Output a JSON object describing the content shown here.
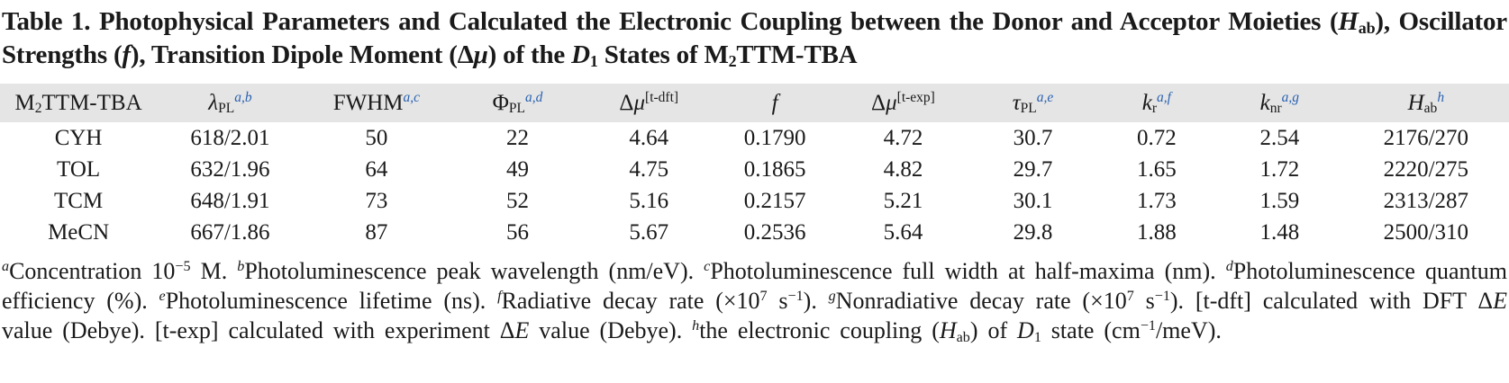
{
  "colors": {
    "accent_blue": "#2a62b0",
    "header_band": "#e5e5e6",
    "text": "#1a1a1a"
  },
  "title": {
    "segments": [
      {
        "t": "Table 1. Photophysical Parameters and Calculated the Electronic Coupling between the Donor and Acceptor Moieties ("
      },
      {
        "s": "i",
        "t": "H"
      },
      {
        "s": "sub",
        "t": "ab"
      },
      {
        "t": "), Oscillator Strengths ("
      },
      {
        "s": "i",
        "t": "f"
      },
      {
        "t": "), Transition Dipole Moment (Δ"
      },
      {
        "s": "i",
        "t": "μ"
      },
      {
        "t": ") of the "
      },
      {
        "s": "i",
        "t": "D"
      },
      {
        "s": "sub",
        "t": "1"
      },
      {
        "t": " States of M"
      },
      {
        "s": "sub",
        "t": "2"
      },
      {
        "t": "TTM-TBA"
      }
    ]
  },
  "table": {
    "header": [
      {
        "name": "compound",
        "segments": [
          {
            "t": "M"
          },
          {
            "s": "sub",
            "t": "2"
          },
          {
            "t": "TTM-TBA"
          }
        ]
      },
      {
        "name": "lambda-pl",
        "segments": [
          {
            "s": "i",
            "t": "λ"
          },
          {
            "s": "sub",
            "t": "PL"
          },
          {
            "s": "supb",
            "t": "a,b"
          }
        ]
      },
      {
        "name": "fwhm",
        "segments": [
          {
            "t": "FWHM"
          },
          {
            "s": "supb",
            "t": "a,c"
          }
        ]
      },
      {
        "name": "phi-pl",
        "segments": [
          {
            "t": "Φ"
          },
          {
            "s": "sub",
            "t": "PL"
          },
          {
            "s": "supb",
            "t": "a,d"
          }
        ]
      },
      {
        "name": "delta-mu-tdft",
        "segments": [
          {
            "t": "Δ"
          },
          {
            "s": "i",
            "t": "μ"
          },
          {
            "s": "sup",
            "t": "[t-dft]"
          }
        ]
      },
      {
        "name": "f",
        "segments": [
          {
            "s": "i",
            "t": "f"
          }
        ]
      },
      {
        "name": "delta-mu-texp",
        "segments": [
          {
            "t": "Δ"
          },
          {
            "s": "i",
            "t": "μ"
          },
          {
            "s": "sup",
            "t": "[t-exp]"
          }
        ]
      },
      {
        "name": "tau-pl",
        "segments": [
          {
            "s": "i",
            "t": "τ"
          },
          {
            "s": "sub",
            "t": "PL"
          },
          {
            "s": "supb",
            "t": "a,e"
          }
        ]
      },
      {
        "name": "k-r",
        "segments": [
          {
            "s": "i",
            "t": "k"
          },
          {
            "s": "sub",
            "t": "r"
          },
          {
            "s": "supb",
            "t": "a,f"
          }
        ]
      },
      {
        "name": "k-nr",
        "segments": [
          {
            "s": "i",
            "t": "k"
          },
          {
            "s": "sub",
            "t": "nr"
          },
          {
            "s": "supb",
            "t": "a,g"
          }
        ]
      },
      {
        "name": "h-ab",
        "segments": [
          {
            "s": "i",
            "t": "H"
          },
          {
            "s": "sub",
            "t": "ab"
          },
          {
            "s": "supb",
            "t": "h"
          }
        ]
      }
    ],
    "rows": [
      {
        "cells": [
          "CYH",
          "618/2.01",
          "50",
          "22",
          "4.64",
          "0.1790",
          "4.72",
          "30.7",
          "0.72",
          "2.54",
          "2176/270"
        ]
      },
      {
        "cells": [
          "TOL",
          "632/1.96",
          "64",
          "49",
          "4.75",
          "0.1865",
          "4.82",
          "29.7",
          "1.65",
          "1.72",
          "2220/275"
        ]
      },
      {
        "cells": [
          "TCM",
          "648/1.91",
          "73",
          "52",
          "5.16",
          "0.2157",
          "5.21",
          "30.1",
          "1.73",
          "1.59",
          "2313/287"
        ]
      },
      {
        "cells": [
          "MeCN",
          "667/1.86",
          "87",
          "56",
          "5.67",
          "0.2536",
          "5.64",
          "29.8",
          "1.88",
          "1.48",
          "2500/310"
        ]
      }
    ]
  },
  "footnotes": {
    "segments": [
      {
        "s": "si",
        "t": "a"
      },
      {
        "t": "Concentration 10"
      },
      {
        "s": "sup",
        "t": "−5"
      },
      {
        "t": " M. "
      },
      {
        "s": "si",
        "t": "b"
      },
      {
        "t": "Photoluminescence peak wavelength (nm/eV). "
      },
      {
        "s": "si",
        "t": "c"
      },
      {
        "t": "Photoluminescence full width at half-maxima (nm). "
      },
      {
        "s": "si",
        "t": "d"
      },
      {
        "t": "Photoluminescence quantum efficiency (%). "
      },
      {
        "s": "si",
        "t": "e"
      },
      {
        "t": "Photoluminescence lifetime (ns). "
      },
      {
        "s": "si",
        "t": "f"
      },
      {
        "t": "Radiative decay rate (×10"
      },
      {
        "s": "sup",
        "t": "7"
      },
      {
        "t": " s"
      },
      {
        "s": "sup",
        "t": "−1"
      },
      {
        "t": "). "
      },
      {
        "s": "si",
        "t": "g"
      },
      {
        "t": "Nonradiative decay rate (×10"
      },
      {
        "s": "sup",
        "t": "7"
      },
      {
        "t": " s"
      },
      {
        "s": "sup",
        "t": "−1"
      },
      {
        "t": "). [t-dft] calculated with DFT Δ"
      },
      {
        "s": "i",
        "t": "E"
      },
      {
        "t": " value (Debye). [t-exp] calculated with experiment Δ"
      },
      {
        "s": "i",
        "t": "E"
      },
      {
        "t": " value (Debye). "
      },
      {
        "s": "si",
        "t": "h"
      },
      {
        "t": "the electronic coupling ("
      },
      {
        "s": "i",
        "t": "H"
      },
      {
        "s": "sub",
        "t": "ab"
      },
      {
        "t": ") of "
      },
      {
        "s": "i",
        "t": "D"
      },
      {
        "s": "sub",
        "t": "1"
      },
      {
        "t": " state (cm"
      },
      {
        "s": "sup",
        "t": "−1"
      },
      {
        "t": "/meV)."
      }
    ]
  }
}
